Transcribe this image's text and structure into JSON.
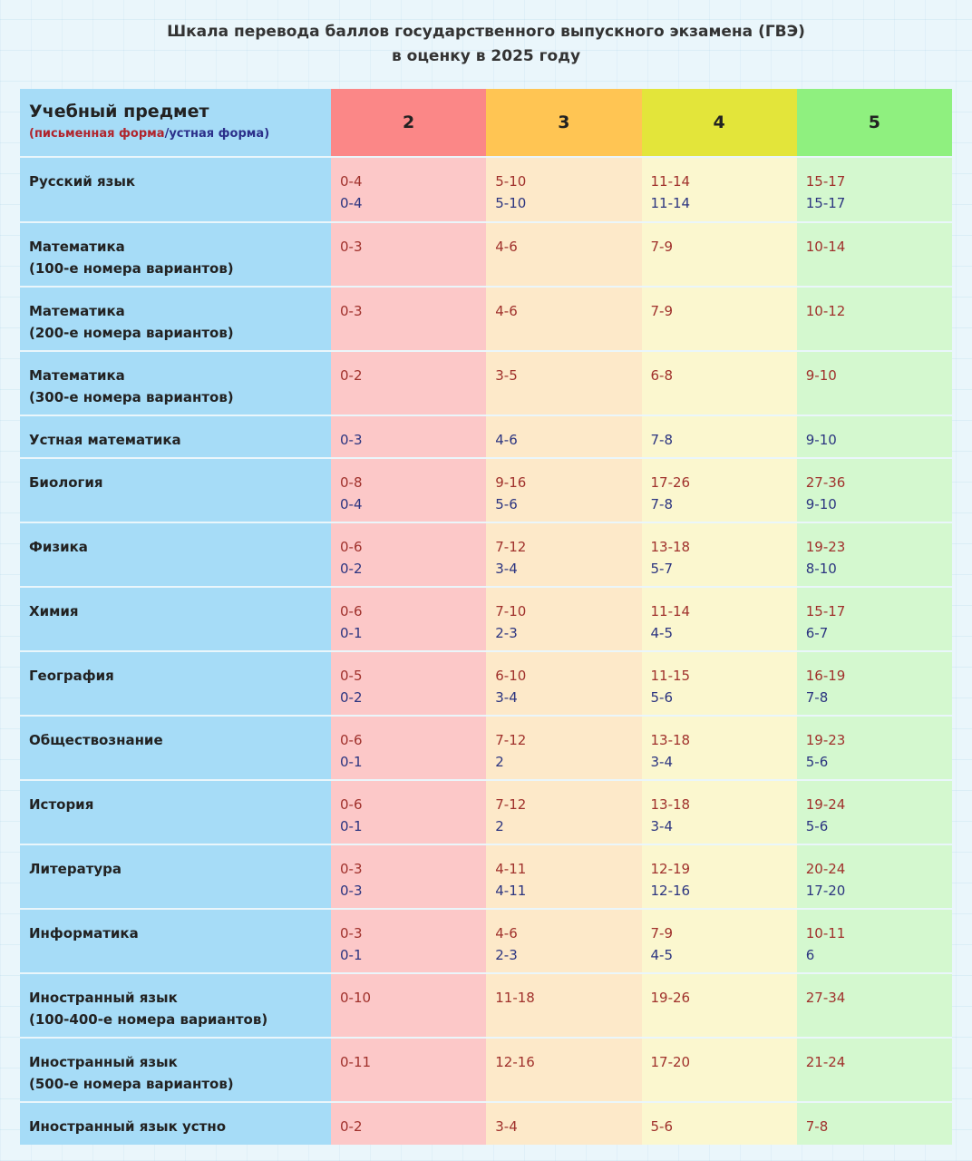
{
  "title": {
    "line1": "Шкала перевода баллов государственного выпускного экзамена (ГВЭ)",
    "line2": "в оценку в 2025 году"
  },
  "header": {
    "subject": "Учебный предмет",
    "note_open": "(",
    "note_written": "письменная форма",
    "note_sep": "/",
    "note_oral": "устная форма",
    "note_close": ")",
    "grades": [
      "2",
      "3",
      "4",
      "5"
    ]
  },
  "rows": [
    {
      "subject": [
        "Русский язык"
      ],
      "cells": [
        [
          "0-4",
          "0-4"
        ],
        [
          "5-10",
          "5-10"
        ],
        [
          "11-14",
          "11-14"
        ],
        [
          "15-17",
          "15-17"
        ]
      ],
      "height": 72
    },
    {
      "subject": [
        "Математика",
        "(100-е номера вариантов)"
      ],
      "cells": [
        [
          "0-3"
        ],
        [
          "4-6"
        ],
        [
          "7-9"
        ],
        [
          "10-14"
        ]
      ],
      "height": 71
    },
    {
      "subject": [
        "Математика",
        "(200-е номера вариантов)"
      ],
      "cells": [
        [
          "0-3"
        ],
        [
          "4-6"
        ],
        [
          "7-9"
        ],
        [
          "10-12"
        ]
      ],
      "height": 71
    },
    {
      "subject": [
        "Математика",
        "(300-е номера вариантов)"
      ],
      "cells": [
        [
          "0-2"
        ],
        [
          "3-5"
        ],
        [
          "6-8"
        ],
        [
          "9-10"
        ]
      ],
      "height": 71
    },
    {
      "subject": [
        "Устная математика"
      ],
      "cells": [
        [
          "0-3"
        ],
        [
          "4-6"
        ],
        [
          "7-8"
        ],
        [
          "9-10"
        ]
      ],
      "oral": true,
      "height": 47
    },
    {
      "subject": [
        "Биология"
      ],
      "cells": [
        [
          "0-8",
          "0-4"
        ],
        [
          "9-16",
          "5-6"
        ],
        [
          "17-26",
          "7-8"
        ],
        [
          "27-36",
          "9-10"
        ]
      ],
      "height": 71
    },
    {
      "subject": [
        "Физика"
      ],
      "cells": [
        [
          "0-6",
          "0-2"
        ],
        [
          "7-12",
          "3-4"
        ],
        [
          "13-18",
          "5-7"
        ],
        [
          "19-23",
          "8-10"
        ]
      ],
      "height": 71
    },
    {
      "subject": [
        "Химия"
      ],
      "cells": [
        [
          "0-6",
          "0-1"
        ],
        [
          "7-10",
          "2-3"
        ],
        [
          "11-14",
          "4-5"
        ],
        [
          "15-17",
          "6-7"
        ]
      ],
      "height": 71
    },
    {
      "subject": [
        "География"
      ],
      "cells": [
        [
          "0-5",
          "0-2"
        ],
        [
          "6-10",
          "3-4"
        ],
        [
          "11-15",
          "5-6"
        ],
        [
          "16-19",
          "7-8"
        ]
      ],
      "height": 71
    },
    {
      "subject": [
        "Обществознание"
      ],
      "cells": [
        [
          "0-6",
          "0-1"
        ],
        [
          "7-12",
          "2"
        ],
        [
          "13-18",
          "3-4"
        ],
        [
          "19-23",
          "5-6"
        ]
      ],
      "height": 71
    },
    {
      "subject": [
        "История"
      ],
      "cells": [
        [
          "0-6",
          "0-1"
        ],
        [
          "7-12",
          "2"
        ],
        [
          "13-18",
          "3-4"
        ],
        [
          "19-24",
          "5-6"
        ]
      ],
      "height": 71
    },
    {
      "subject": [
        "Литература"
      ],
      "cells": [
        [
          "0-3",
          "0-3"
        ],
        [
          "4-11",
          "4-11"
        ],
        [
          "12-19",
          "12-16"
        ],
        [
          "20-24",
          "17-20"
        ]
      ],
      "height": 71
    },
    {
      "subject": [
        "Информатика"
      ],
      "cells": [
        [
          "0-3",
          "0-1"
        ],
        [
          "4-6",
          "2-3"
        ],
        [
          "7-9",
          "4-5"
        ],
        [
          "10-11",
          "6"
        ]
      ],
      "height": 71
    },
    {
      "subject": [
        "Иностранный язык",
        "(100-400-е номера вариантов)"
      ],
      "cells": [
        [
          "0-10"
        ],
        [
          "11-18"
        ],
        [
          "19-26"
        ],
        [
          "27-34"
        ]
      ],
      "height": 71
    },
    {
      "subject": [
        "Иностранный язык",
        "(500-е номера вариантов)"
      ],
      "cells": [
        [
          "0-11"
        ],
        [
          "12-16"
        ],
        [
          "17-20"
        ],
        [
          "21-24"
        ]
      ],
      "height": 71
    },
    {
      "subject": [
        "Иностранный язык устно"
      ],
      "cells": [
        [
          "0-2"
        ],
        [
          "3-4"
        ],
        [
          "5-6"
        ],
        [
          "7-8"
        ]
      ],
      "height": 48
    }
  ]
}
